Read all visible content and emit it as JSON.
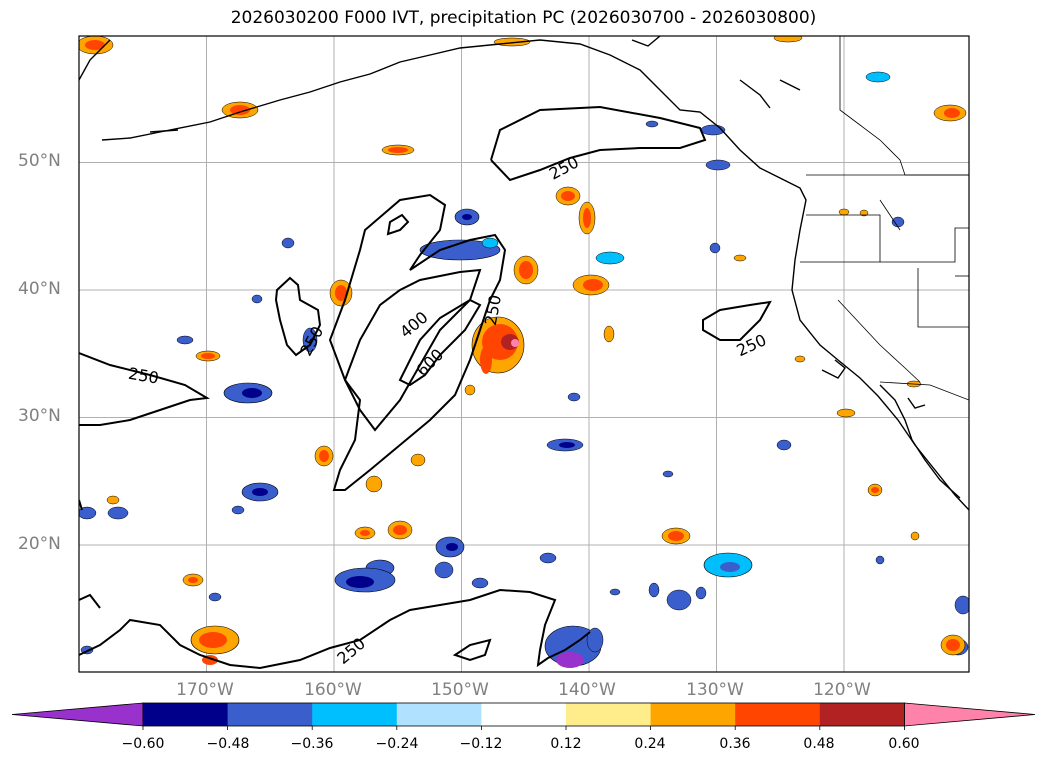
{
  "title": "2026030200 F000 IVT, precipitation PC (2026030700 - 2026030800)",
  "lat_labels": [
    {
      "text": "50°N",
      "lat": 50
    },
    {
      "text": "40°N",
      "lat": 40
    },
    {
      "text": "30°N",
      "lat": 30
    },
    {
      "text": "20°N",
      "lat": 20
    }
  ],
  "lon_labels": [
    {
      "text": "170°W",
      "lon": -170
    },
    {
      "text": "160°W",
      "lon": -160
    },
    {
      "text": "150°W",
      "lon": -150
    },
    {
      "text": "140°W",
      "lon": -140
    },
    {
      "text": "130°W",
      "lon": -130
    },
    {
      "text": "120°W",
      "lon": -120
    }
  ],
  "ivt_contour_labels": [
    "250",
    "250",
    "250",
    "250",
    "250",
    "400",
    "600",
    "250"
  ],
  "colorbar": {
    "colors": [
      "#9932cc",
      "#00008b",
      "#3a5fcd",
      "#00bfff",
      "#b0e2ff",
      "#ffffff",
      "#ffec8b",
      "#ffa500",
      "#ff4500",
      "#b22222",
      "#ff82ab"
    ],
    "ticks": [
      "−0.60",
      "−0.48",
      "−0.36",
      "−0.24",
      "−0.12",
      "0.12",
      "0.24",
      "0.36",
      "0.48",
      "0.60"
    ]
  }
}
